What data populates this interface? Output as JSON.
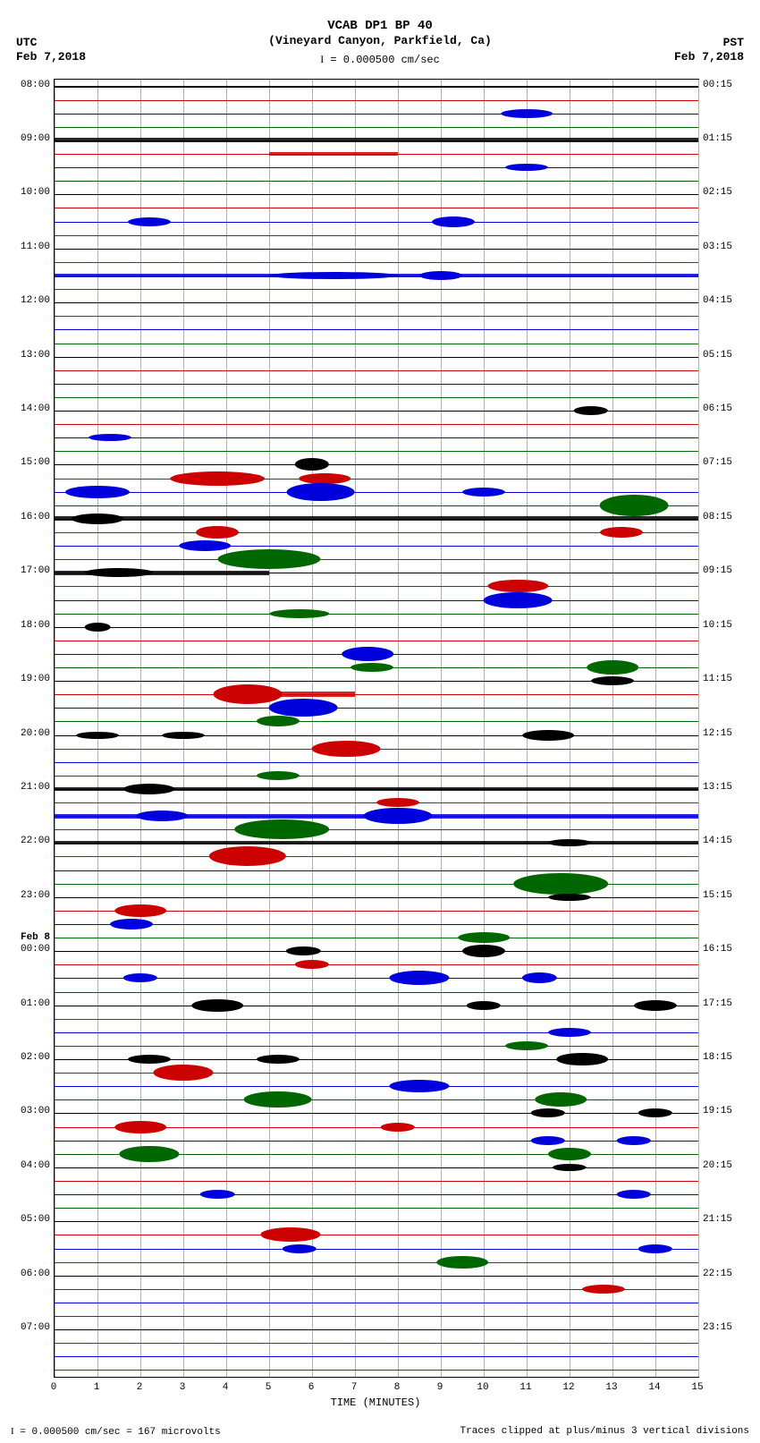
{
  "title_line1": "VCAB DP1 BP 40",
  "title_line2": "(Vineyard Canyon, Parkfield, Ca)",
  "scale_text": "= 0.000500 cm/sec",
  "tz_left_label": "UTC",
  "tz_left_date": "Feb 7,2018",
  "tz_right_label": "PST",
  "tz_right_date": "Feb 7,2018",
  "xaxis_title": "TIME (MINUTES)",
  "footer_left": "= 0.000500 cm/sec =    167 microvolts",
  "footer_right": "Traces clipped at plus/minus 3 vertical divisions",
  "day_boundary_label": "Feb 8",
  "plot": {
    "x_min": 0,
    "x_max": 15,
    "x_ticks": [
      0,
      1,
      2,
      3,
      4,
      5,
      6,
      7,
      8,
      9,
      10,
      11,
      12,
      13,
      14,
      15
    ],
    "trace_colors": [
      "#000000",
      "#cc0000",
      "#0000dd",
      "#006600"
    ],
    "grid_color": "#b0b0b0",
    "bg": "#ffffff",
    "n_traces": 96,
    "left_labels": [
      {
        "idx": 0,
        "text": "08:00"
      },
      {
        "idx": 4,
        "text": "09:00"
      },
      {
        "idx": 8,
        "text": "10:00"
      },
      {
        "idx": 12,
        "text": "11:00"
      },
      {
        "idx": 16,
        "text": "12:00"
      },
      {
        "idx": 20,
        "text": "13:00"
      },
      {
        "idx": 24,
        "text": "14:00"
      },
      {
        "idx": 28,
        "text": "15:00"
      },
      {
        "idx": 32,
        "text": "16:00"
      },
      {
        "idx": 36,
        "text": "17:00"
      },
      {
        "idx": 40,
        "text": "18:00"
      },
      {
        "idx": 44,
        "text": "19:00"
      },
      {
        "idx": 48,
        "text": "20:00"
      },
      {
        "idx": 52,
        "text": "21:00"
      },
      {
        "idx": 56,
        "text": "22:00"
      },
      {
        "idx": 60,
        "text": "23:00"
      },
      {
        "idx": 64,
        "text": "00:00"
      },
      {
        "idx": 68,
        "text": "01:00"
      },
      {
        "idx": 72,
        "text": "02:00"
      },
      {
        "idx": 76,
        "text": "03:00"
      },
      {
        "idx": 80,
        "text": "04:00"
      },
      {
        "idx": 84,
        "text": "05:00"
      },
      {
        "idx": 88,
        "text": "06:00"
      },
      {
        "idx": 92,
        "text": "07:00"
      }
    ],
    "right_labels": [
      {
        "idx": 0,
        "text": "00:15"
      },
      {
        "idx": 4,
        "text": "01:15"
      },
      {
        "idx": 8,
        "text": "02:15"
      },
      {
        "idx": 12,
        "text": "03:15"
      },
      {
        "idx": 16,
        "text": "04:15"
      },
      {
        "idx": 20,
        "text": "05:15"
      },
      {
        "idx": 24,
        "text": "06:15"
      },
      {
        "idx": 28,
        "text": "07:15"
      },
      {
        "idx": 32,
        "text": "08:15"
      },
      {
        "idx": 36,
        "text": "09:15"
      },
      {
        "idx": 40,
        "text": "10:15"
      },
      {
        "idx": 44,
        "text": "11:15"
      },
      {
        "idx": 48,
        "text": "12:15"
      },
      {
        "idx": 52,
        "text": "13:15"
      },
      {
        "idx": 56,
        "text": "14:15"
      },
      {
        "idx": 60,
        "text": "15:15"
      },
      {
        "idx": 64,
        "text": "16:15"
      },
      {
        "idx": 68,
        "text": "17:15"
      },
      {
        "idx": 72,
        "text": "18:15"
      },
      {
        "idx": 76,
        "text": "19:15"
      },
      {
        "idx": 80,
        "text": "20:15"
      },
      {
        "idx": 84,
        "text": "21:15"
      },
      {
        "idx": 88,
        "text": "22:15"
      },
      {
        "idx": 92,
        "text": "23:15"
      }
    ],
    "day_boundary_idx": 64,
    "noise": [
      {
        "idx": 0,
        "from": 0,
        "to": 15,
        "h": 2
      },
      {
        "idx": 4,
        "from": 0,
        "to": 15,
        "h": 5
      },
      {
        "idx": 5,
        "from": 5,
        "to": 8,
        "h": 4
      },
      {
        "idx": 14,
        "from": 0,
        "to": 15,
        "h": 4
      },
      {
        "idx": 32,
        "from": 0,
        "to": 15,
        "h": 5
      },
      {
        "idx": 36,
        "from": 0,
        "to": 5,
        "h": 5
      },
      {
        "idx": 45,
        "from": 4,
        "to": 7,
        "h": 6
      },
      {
        "idx": 52,
        "from": 0,
        "to": 15,
        "h": 4
      },
      {
        "idx": 54,
        "from": 0,
        "to": 15,
        "h": 5
      },
      {
        "idx": 56,
        "from": 0,
        "to": 15,
        "h": 4
      }
    ],
    "events": [
      {
        "idx": 2,
        "x": 11,
        "w": 1.2,
        "amp": 10
      },
      {
        "idx": 6,
        "x": 11,
        "w": 1.0,
        "amp": 8
      },
      {
        "idx": 10,
        "x": 2.2,
        "w": 1.0,
        "amp": 10
      },
      {
        "idx": 10,
        "x": 9.3,
        "w": 1.0,
        "amp": 12
      },
      {
        "idx": 14,
        "x": 6.5,
        "w": 3.0,
        "amp": 8
      },
      {
        "idx": 14,
        "x": 9.0,
        "w": 1.0,
        "amp": 10
      },
      {
        "idx": 24,
        "x": 12.5,
        "w": 0.8,
        "amp": 10
      },
      {
        "idx": 26,
        "x": 1.3,
        "w": 1.0,
        "amp": 8
      },
      {
        "idx": 28,
        "x": 6.0,
        "w": 0.8,
        "amp": 14
      },
      {
        "idx": 29,
        "x": 3.8,
        "w": 2.2,
        "amp": 16
      },
      {
        "idx": 29,
        "x": 6.3,
        "w": 1.2,
        "amp": 12
      },
      {
        "idx": 30,
        "x": 1.0,
        "w": 1.5,
        "amp": 14
      },
      {
        "idx": 30,
        "x": 6.2,
        "w": 1.6,
        "amp": 20
      },
      {
        "idx": 30,
        "x": 10.0,
        "w": 1.0,
        "amp": 10
      },
      {
        "idx": 31,
        "x": 13.5,
        "w": 1.6,
        "amp": 24
      },
      {
        "idx": 32,
        "x": 1.0,
        "w": 1.2,
        "amp": 12
      },
      {
        "idx": 33,
        "x": 3.8,
        "w": 1.0,
        "amp": 14
      },
      {
        "idx": 33,
        "x": 13.2,
        "w": 1.0,
        "amp": 12
      },
      {
        "idx": 34,
        "x": 3.5,
        "w": 1.2,
        "amp": 12
      },
      {
        "idx": 35,
        "x": 5.0,
        "w": 2.4,
        "amp": 22
      },
      {
        "idx": 36,
        "x": 1.5,
        "w": 1.6,
        "amp": 10
      },
      {
        "idx": 37,
        "x": 10.8,
        "w": 1.4,
        "amp": 14
      },
      {
        "idx": 38,
        "x": 10.8,
        "w": 1.6,
        "amp": 18
      },
      {
        "idx": 39,
        "x": 5.7,
        "w": 1.4,
        "amp": 10
      },
      {
        "idx": 40,
        "x": 1.0,
        "w": 0.6,
        "amp": 10
      },
      {
        "idx": 42,
        "x": 7.3,
        "w": 1.2,
        "amp": 16
      },
      {
        "idx": 43,
        "x": 7.4,
        "w": 1.0,
        "amp": 10
      },
      {
        "idx": 43,
        "x": 13.0,
        "w": 1.2,
        "amp": 16
      },
      {
        "idx": 44,
        "x": 13.0,
        "w": 1.0,
        "amp": 10
      },
      {
        "idx": 45,
        "x": 4.5,
        "w": 1.6,
        "amp": 22
      },
      {
        "idx": 46,
        "x": 5.8,
        "w": 1.6,
        "amp": 20
      },
      {
        "idx": 47,
        "x": 5.2,
        "w": 1.0,
        "amp": 12
      },
      {
        "idx": 48,
        "x": 1.0,
        "w": 1.0,
        "amp": 8
      },
      {
        "idx": 48,
        "x": 3.0,
        "w": 1.0,
        "amp": 8
      },
      {
        "idx": 48,
        "x": 11.5,
        "w": 1.2,
        "amp": 12
      },
      {
        "idx": 49,
        "x": 6.8,
        "w": 1.6,
        "amp": 18
      },
      {
        "idx": 51,
        "x": 5.2,
        "w": 1.0,
        "amp": 10
      },
      {
        "idx": 52,
        "x": 2.2,
        "w": 1.2,
        "amp": 12
      },
      {
        "idx": 53,
        "x": 8.0,
        "w": 1.0,
        "amp": 10
      },
      {
        "idx": 54,
        "x": 2.5,
        "w": 1.2,
        "amp": 12
      },
      {
        "idx": 54,
        "x": 8.0,
        "w": 1.6,
        "amp": 18
      },
      {
        "idx": 55,
        "x": 5.3,
        "w": 2.2,
        "amp": 22
      },
      {
        "idx": 56,
        "x": 12.0,
        "w": 1.0,
        "amp": 8
      },
      {
        "idx": 57,
        "x": 4.5,
        "w": 1.8,
        "amp": 22
      },
      {
        "idx": 59,
        "x": 11.8,
        "w": 2.2,
        "amp": 24
      },
      {
        "idx": 60,
        "x": 12.0,
        "w": 1.0,
        "amp": 8
      },
      {
        "idx": 61,
        "x": 2.0,
        "w": 1.2,
        "amp": 14
      },
      {
        "idx": 62,
        "x": 1.8,
        "w": 1.0,
        "amp": 12
      },
      {
        "idx": 63,
        "x": 10.0,
        "w": 1.2,
        "amp": 12
      },
      {
        "idx": 64,
        "x": 5.8,
        "w": 0.8,
        "amp": 10
      },
      {
        "idx": 64,
        "x": 10.0,
        "w": 1.0,
        "amp": 14
      },
      {
        "idx": 65,
        "x": 6.0,
        "w": 0.8,
        "amp": 10
      },
      {
        "idx": 66,
        "x": 2.0,
        "w": 0.8,
        "amp": 10
      },
      {
        "idx": 66,
        "x": 8.5,
        "w": 1.4,
        "amp": 16
      },
      {
        "idx": 66,
        "x": 11.3,
        "w": 0.8,
        "amp": 12
      },
      {
        "idx": 68,
        "x": 3.8,
        "w": 1.2,
        "amp": 14
      },
      {
        "idx": 68,
        "x": 10.0,
        "w": 0.8,
        "amp": 10
      },
      {
        "idx": 68,
        "x": 14.0,
        "w": 1.0,
        "amp": 12
      },
      {
        "idx": 70,
        "x": 12.0,
        "w": 1.0,
        "amp": 10
      },
      {
        "idx": 71,
        "x": 11.0,
        "w": 1.0,
        "amp": 10
      },
      {
        "idx": 72,
        "x": 2.2,
        "w": 1.0,
        "amp": 10
      },
      {
        "idx": 72,
        "x": 5.2,
        "w": 1.0,
        "amp": 10
      },
      {
        "idx": 72,
        "x": 12.3,
        "w": 1.2,
        "amp": 14
      },
      {
        "idx": 73,
        "x": 3.0,
        "w": 1.4,
        "amp": 18
      },
      {
        "idx": 74,
        "x": 8.5,
        "w": 1.4,
        "amp": 14
      },
      {
        "idx": 75,
        "x": 5.2,
        "w": 1.6,
        "amp": 18
      },
      {
        "idx": 75,
        "x": 11.8,
        "w": 1.2,
        "amp": 16
      },
      {
        "idx": 76,
        "x": 11.5,
        "w": 0.8,
        "amp": 10
      },
      {
        "idx": 76,
        "x": 14.0,
        "w": 0.8,
        "amp": 10
      },
      {
        "idx": 77,
        "x": 2.0,
        "w": 1.2,
        "amp": 14
      },
      {
        "idx": 77,
        "x": 8.0,
        "w": 0.8,
        "amp": 10
      },
      {
        "idx": 78,
        "x": 11.5,
        "w": 0.8,
        "amp": 10
      },
      {
        "idx": 78,
        "x": 13.5,
        "w": 0.8,
        "amp": 10
      },
      {
        "idx": 79,
        "x": 2.2,
        "w": 1.4,
        "amp": 18
      },
      {
        "idx": 79,
        "x": 12.0,
        "w": 1.0,
        "amp": 14
      },
      {
        "idx": 80,
        "x": 12.0,
        "w": 0.8,
        "amp": 8
      },
      {
        "idx": 82,
        "x": 3.8,
        "w": 0.8,
        "amp": 10
      },
      {
        "idx": 82,
        "x": 13.5,
        "w": 0.8,
        "amp": 10
      },
      {
        "idx": 85,
        "x": 5.5,
        "w": 1.4,
        "amp": 16
      },
      {
        "idx": 86,
        "x": 5.7,
        "w": 0.8,
        "amp": 10
      },
      {
        "idx": 86,
        "x": 14.0,
        "w": 0.8,
        "amp": 10
      },
      {
        "idx": 87,
        "x": 9.5,
        "w": 1.2,
        "amp": 14
      },
      {
        "idx": 89,
        "x": 12.8,
        "w": 1.0,
        "amp": 10
      }
    ]
  }
}
